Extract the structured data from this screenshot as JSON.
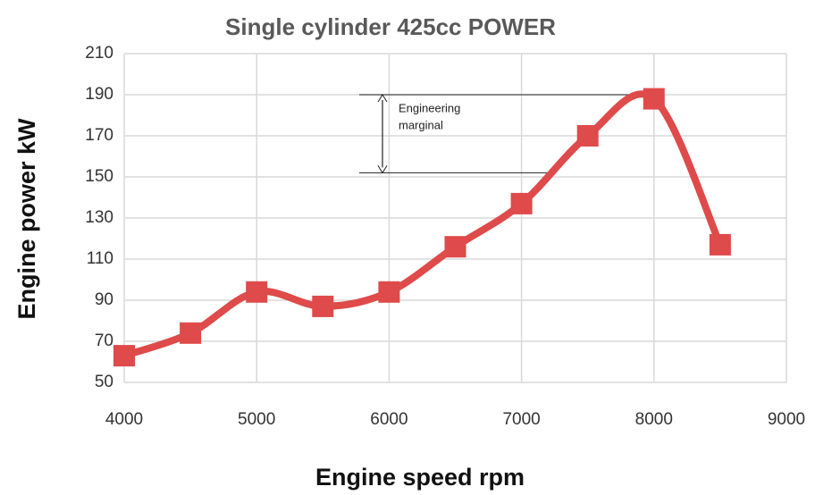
{
  "chart_data": {
    "type": "line",
    "title": "Single cylinder 425cc POWER",
    "x_label": "Engine speed rpm",
    "y_label": "Engine power kW",
    "x": [
      4000,
      4500,
      5000,
      5500,
      6000,
      6500,
      7000,
      7500,
      8000,
      8500
    ],
    "series": [
      {
        "name": "Power",
        "color": "#df4a4a",
        "values": [
          63,
          74,
          94,
          87,
          94,
          116,
          137,
          170,
          188,
          117
        ]
      }
    ],
    "xlim": [
      4000,
      9000
    ],
    "xticks": [
      4000,
      5000,
      6000,
      7000,
      8000,
      9000
    ],
    "ylim": [
      50,
      210
    ],
    "yticks": [
      50,
      70,
      90,
      110,
      130,
      150,
      170,
      190,
      210
    ],
    "grid": true,
    "smooth": true,
    "annotation": {
      "text": [
        "Engineering",
        "marginal"
      ],
      "y": [
        190,
        152
      ]
    }
  }
}
